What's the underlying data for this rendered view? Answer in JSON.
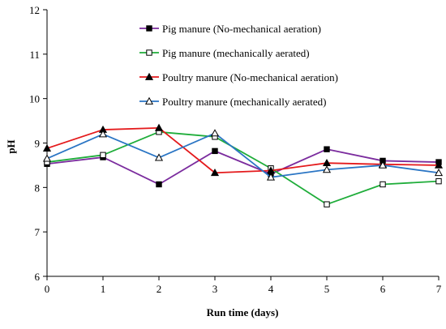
{
  "chart_data": {
    "type": "line",
    "title": "",
    "xlabel": "Run time  (days)",
    "ylabel": "pH",
    "x": [
      0,
      1,
      2,
      3,
      4,
      5,
      6,
      7
    ],
    "xlim": [
      0,
      7
    ],
    "ylim": [
      6,
      12
    ],
    "xticks": [
      "0",
      "1",
      "2",
      "3",
      "4",
      "5",
      "6",
      "7"
    ],
    "yticks": [
      "6",
      "7",
      "8",
      "9",
      "10",
      "11",
      "12"
    ],
    "grid": false,
    "legend_position": "top-right",
    "series": [
      {
        "name": "Pig manure (No-mechanical aeration)",
        "color": "#7B2C9E",
        "marker": "filled-square",
        "values": [
          8.53,
          8.68,
          8.07,
          8.82,
          8.3,
          8.86,
          8.6,
          8.57
        ]
      },
      {
        "name": "Pig manure (mechanically aerated)",
        "color": "#1FAD3A",
        "marker": "open-square",
        "values": [
          8.57,
          8.73,
          9.25,
          9.14,
          8.43,
          7.62,
          8.07,
          8.14
        ]
      },
      {
        "name": "Poultry manure (No-mechanical aeration)",
        "color": "#E41A1C",
        "marker": "filled-triangle",
        "values": [
          8.88,
          9.3,
          9.34,
          8.33,
          8.38,
          8.55,
          8.52,
          8.5
        ]
      },
      {
        "name": "Poultry manure (mechanically aerated)",
        "color": "#2A75C4",
        "marker": "open-triangle",
        "values": [
          8.65,
          9.2,
          8.67,
          9.22,
          8.23,
          8.4,
          8.5,
          8.33
        ]
      }
    ]
  }
}
